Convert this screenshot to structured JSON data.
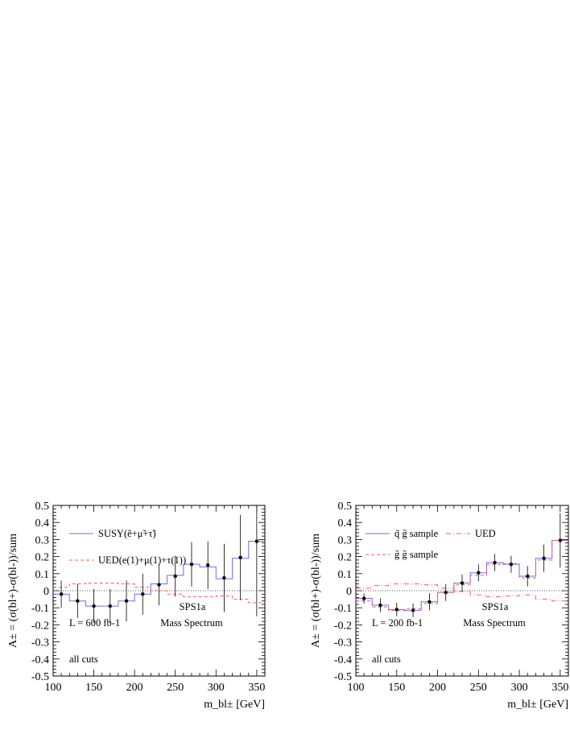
{
  "chart_data": [
    {
      "type": "line",
      "xlabel": "m_bl± [GeV]",
      "ylabel": "A± = (σ(bl+)-σ(bl-))/sum",
      "xlim": [
        100,
        360
      ],
      "ylim": [
        -0.5,
        0.5
      ],
      "x_ticks": [
        "100",
        "150",
        "200",
        "250",
        "300",
        "350"
      ],
      "y_ticks": [
        "0.5",
        "0.4",
        "0.3",
        "0.2",
        "0.1",
        "0",
        "-0.1",
        "-0.2",
        "-0.3",
        "-0.4",
        "-0.5"
      ],
      "legend_position": "top-left",
      "annotations": [
        "L = 600 fb-1",
        "all cuts",
        "SPS1a",
        "Mass Spectrum"
      ],
      "bin_edges": [
        100,
        120,
        140,
        160,
        180,
        200,
        220,
        240,
        260,
        280,
        300,
        320,
        340,
        360
      ],
      "series": [
        {
          "name": "SUSY(ẽ+μ̃+τ̃)",
          "style": "histogram-solid",
          "color": "#6b6bff",
          "values": [
            -0.02,
            -0.06,
            -0.09,
            -0.09,
            -0.06,
            -0.02,
            0.04,
            0.09,
            0.155,
            0.14,
            0.07,
            0.19,
            0.29
          ]
        },
        {
          "name": "UED(e(1)+μ(1)+τ(1))",
          "style": "histogram-dashed",
          "color": "#ff5a5a",
          "values": [
            0.02,
            0.04,
            0.045,
            0.045,
            0.04,
            0.02,
            0.0,
            -0.02,
            -0.035,
            -0.035,
            -0.03,
            -0.05,
            -0.07
          ]
        },
        {
          "name": "",
          "style": "points-with-errors",
          "color": "#000000",
          "x": [
            110,
            130,
            150,
            170,
            190,
            210,
            230,
            250,
            270,
            290,
            310,
            330,
            350
          ],
          "y": [
            -0.02,
            -0.06,
            -0.09,
            -0.09,
            -0.06,
            -0.02,
            0.035,
            0.085,
            0.155,
            0.15,
            0.075,
            0.195,
            0.29
          ],
          "err": [
            0.08,
            0.1,
            0.1,
            0.1,
            0.12,
            0.12,
            0.12,
            0.12,
            0.13,
            0.14,
            0.2,
            0.25,
            0.44
          ]
        }
      ]
    },
    {
      "type": "line",
      "xlabel": "m_bl± [GeV]",
      "ylabel": "A± = (σ(bl+)-σ(bl-))/sum",
      "xlim": [
        100,
        360
      ],
      "ylim": [
        -0.5,
        0.5
      ],
      "x_ticks": [
        "100",
        "150",
        "200",
        "250",
        "300",
        "350"
      ],
      "y_ticks": [
        "0.5",
        "0.4",
        "0.3",
        "0.2",
        "0.1",
        "0",
        "-0.1",
        "-0.2",
        "-0.3",
        "-0.4",
        "-0.5"
      ],
      "legend_position": "top-left",
      "annotations": [
        "L = 200 fb-1",
        "all cuts",
        "SPS1a",
        "Mass Spectrum"
      ],
      "bin_edges": [
        100,
        120,
        140,
        160,
        180,
        200,
        220,
        240,
        260,
        280,
        300,
        320,
        340,
        360
      ],
      "series": [
        {
          "name": "q̃ g̃ sample",
          "style": "histogram-solid",
          "color": "#6b6bff",
          "values": [
            -0.045,
            -0.085,
            -0.11,
            -0.115,
            -0.065,
            -0.01,
            0.045,
            0.105,
            0.165,
            0.155,
            0.085,
            0.19,
            0.295
          ]
        },
        {
          "name": "g̃ g̃ sample",
          "style": "histogram-dashed",
          "color": "#ff5a5a",
          "values": [
            -0.06,
            -0.095,
            -0.115,
            -0.105,
            -0.075,
            -0.01,
            0.035,
            0.09,
            0.155,
            0.16,
            0.075,
            0.18,
            0.295
          ]
        },
        {
          "name": "UED",
          "style": "histogram-dashdot",
          "color": "#ff5a5a",
          "values": [
            0.015,
            0.03,
            0.04,
            0.04,
            0.035,
            0.015,
            -0.005,
            -0.025,
            -0.035,
            -0.03,
            -0.025,
            -0.05,
            -0.06
          ]
        },
        {
          "name": "",
          "style": "points-with-errors",
          "color": "#000000",
          "x": [
            110,
            130,
            150,
            170,
            190,
            210,
            230,
            250,
            270,
            290,
            310,
            330,
            350
          ],
          "y": [
            -0.045,
            -0.085,
            -0.11,
            -0.115,
            -0.065,
            -0.01,
            0.045,
            0.105,
            0.165,
            0.155,
            0.085,
            0.19,
            0.295
          ],
          "err": [
            0.03,
            0.04,
            0.04,
            0.04,
            0.05,
            0.05,
            0.05,
            0.05,
            0.05,
            0.05,
            0.06,
            0.08,
            0.16
          ]
        }
      ]
    }
  ]
}
